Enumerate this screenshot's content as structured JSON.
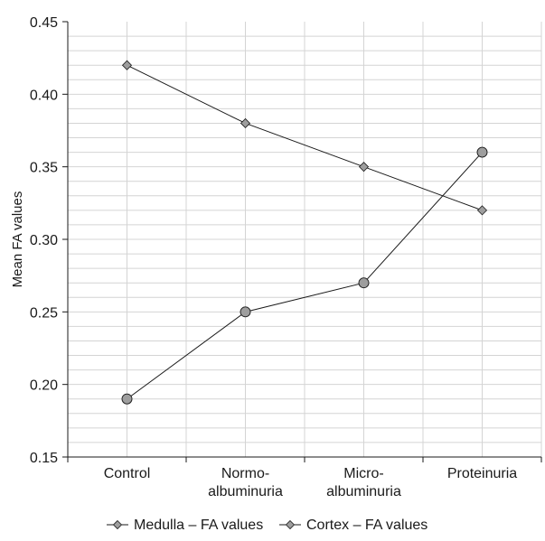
{
  "chart_data": {
    "type": "line",
    "title": "",
    "xlabel": "",
    "ylabel": "Mean FA values",
    "categories": [
      [
        "Control"
      ],
      [
        "Normo-",
        "albuminuria"
      ],
      [
        "Micro-",
        "albuminuria"
      ],
      [
        "Proteinuria"
      ]
    ],
    "ylim": [
      0.15,
      0.45
    ],
    "yticks": [
      "0.15",
      "0.20",
      "0.25",
      "0.30",
      "0.35",
      "0.40",
      "0.45"
    ],
    "grid": true,
    "legend_position": "bottom",
    "series": [
      {
        "name": "Medulla – FA values",
        "values": [
          0.42,
          0.38,
          0.35,
          0.32
        ],
        "marker": "diamond"
      },
      {
        "name": "Cortex – FA values",
        "values": [
          0.19,
          0.25,
          0.27,
          0.36
        ],
        "marker": "circle"
      }
    ],
    "colors": {
      "line": "#1a1a1a",
      "marker_fill": "#9e9e9e",
      "grid": "#d4d4d4",
      "axis": "#1a1a1a"
    }
  }
}
